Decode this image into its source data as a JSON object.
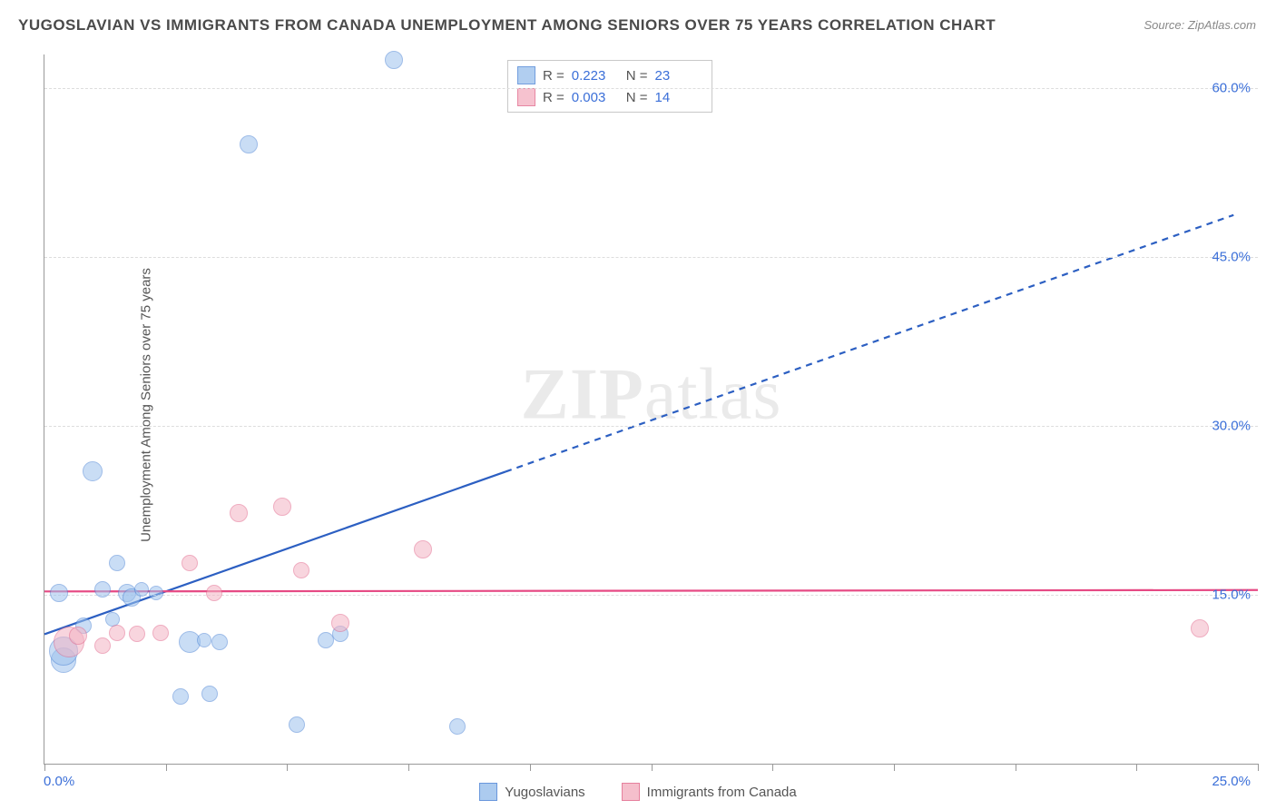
{
  "title": "YUGOSLAVIAN VS IMMIGRANTS FROM CANADA UNEMPLOYMENT AMONG SENIORS OVER 75 YEARS CORRELATION CHART",
  "source_prefix": "Source: ",
  "source_name": "ZipAtlas.com",
  "y_axis_title": "Unemployment Among Seniors over 75 years",
  "watermark_strong": "ZIP",
  "watermark_light": "atlas",
  "x_axis": {
    "min_label": "0.0%",
    "max_label": "25.0%",
    "min": 0,
    "max": 25,
    "tick_step": 2.5
  },
  "y_axis": {
    "min": 0,
    "max": 63,
    "ticks": [
      {
        "value": 15,
        "label": "15.0%"
      },
      {
        "value": 30,
        "label": "30.0%"
      },
      {
        "value": 45,
        "label": "45.0%"
      },
      {
        "value": 60,
        "label": "60.0%"
      }
    ]
  },
  "series": [
    {
      "name": "Yugoslavians",
      "fill": "#9ec3ed",
      "fill_opacity": 0.55,
      "stroke": "#4f86d6",
      "r_label": "R =",
      "r_value": "0.223",
      "n_label": "N =",
      "n_value": "23",
      "trend": {
        "intercept": 11.5,
        "slope": 1.52,
        "solid_until_x": 9.5,
        "dash_until_x": 24.5,
        "stroke": "#2c5fc2",
        "width": 2.2
      },
      "points": [
        {
          "x": 0.3,
          "y": 15.2,
          "r": 10
        },
        {
          "x": 0.4,
          "y": 9.2,
          "r": 14
        },
        {
          "x": 0.4,
          "y": 10.0,
          "r": 16
        },
        {
          "x": 0.8,
          "y": 12.3,
          "r": 9
        },
        {
          "x": 1.0,
          "y": 26.0,
          "r": 11
        },
        {
          "x": 1.2,
          "y": 15.5,
          "r": 9
        },
        {
          "x": 1.4,
          "y": 12.8,
          "r": 8
        },
        {
          "x": 1.5,
          "y": 17.8,
          "r": 9
        },
        {
          "x": 1.7,
          "y": 15.2,
          "r": 10
        },
        {
          "x": 1.8,
          "y": 14.8,
          "r": 10
        },
        {
          "x": 2.0,
          "y": 15.5,
          "r": 8
        },
        {
          "x": 2.3,
          "y": 15.2,
          "r": 8
        },
        {
          "x": 2.8,
          "y": 6.0,
          "r": 9
        },
        {
          "x": 3.0,
          "y": 10.8,
          "r": 12
        },
        {
          "x": 3.3,
          "y": 11.0,
          "r": 8
        },
        {
          "x": 3.4,
          "y": 6.2,
          "r": 9
        },
        {
          "x": 3.6,
          "y": 10.8,
          "r": 9
        },
        {
          "x": 4.2,
          "y": 55.0,
          "r": 10
        },
        {
          "x": 5.2,
          "y": 3.5,
          "r": 9
        },
        {
          "x": 5.8,
          "y": 11.0,
          "r": 9
        },
        {
          "x": 6.1,
          "y": 11.5,
          "r": 9
        },
        {
          "x": 7.2,
          "y": 62.5,
          "r": 10
        },
        {
          "x": 8.5,
          "y": 3.3,
          "r": 9
        }
      ]
    },
    {
      "name": "Immigrants from Canada",
      "fill": "#f4b4c4",
      "fill_opacity": 0.55,
      "stroke": "#e26a8d",
      "r_label": "R =",
      "r_value": "0.003",
      "n_label": "N =",
      "n_value": "14",
      "trend": {
        "intercept": 15.3,
        "slope": 0.005,
        "solid_until_x": 25,
        "dash_until_x": 25,
        "stroke": "#e64a84",
        "width": 2.2
      },
      "points": [
        {
          "x": 0.5,
          "y": 10.8,
          "r": 17
        },
        {
          "x": 0.7,
          "y": 11.4,
          "r": 10
        },
        {
          "x": 1.2,
          "y": 10.5,
          "r": 9
        },
        {
          "x": 1.5,
          "y": 11.6,
          "r": 9
        },
        {
          "x": 1.9,
          "y": 11.5,
          "r": 9
        },
        {
          "x": 2.4,
          "y": 11.6,
          "r": 9
        },
        {
          "x": 3.0,
          "y": 17.8,
          "r": 9
        },
        {
          "x": 3.5,
          "y": 15.2,
          "r": 9
        },
        {
          "x": 4.0,
          "y": 22.3,
          "r": 10
        },
        {
          "x": 4.9,
          "y": 22.8,
          "r": 10
        },
        {
          "x": 5.3,
          "y": 17.2,
          "r": 9
        },
        {
          "x": 6.1,
          "y": 12.5,
          "r": 10
        },
        {
          "x": 7.8,
          "y": 19.0,
          "r": 10
        },
        {
          "x": 23.8,
          "y": 12.0,
          "r": 10
        }
      ]
    }
  ],
  "legend_bottom": [
    {
      "label": "Yugoslavians",
      "fill": "#9ec3ed",
      "stroke": "#4f86d6"
    },
    {
      "label": "Immigrants from Canada",
      "fill": "#f4b4c4",
      "stroke": "#e26a8d"
    }
  ]
}
